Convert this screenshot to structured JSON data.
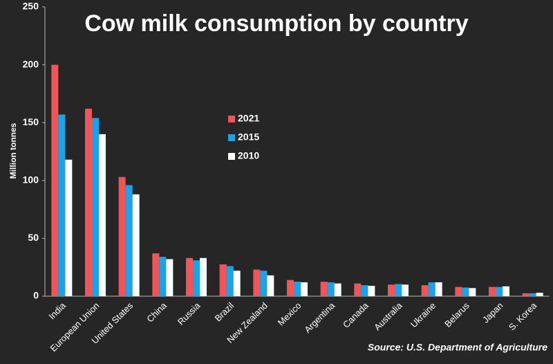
{
  "chart_data": {
    "type": "bar",
    "title": "Cow milk consumption by country",
    "y_label": "Million tonnes",
    "source": "Source: U.S. Department of Agriculture",
    "categories": [
      "India",
      "European Union",
      "United States",
      "China",
      "Russia",
      "Brazil",
      "New Zealand",
      "Mexico",
      "Argentina",
      "Canada",
      "Australia",
      "Ukraine",
      "Belarus",
      "Japan",
      "S. Korea"
    ],
    "series": [
      {
        "name": "2021",
        "color": "#f0555a",
        "values": [
          200,
          162,
          103,
          37,
          33,
          27.5,
          23,
          14,
          12.5,
          11,
          10,
          9.5,
          8,
          8,
          2.5
        ]
      },
      {
        "name": "2015",
        "color": "#1aa3e8",
        "values": [
          157,
          154,
          96,
          34,
          31,
          26,
          22,
          12.5,
          12,
          9.5,
          10.5,
          12,
          7.5,
          8,
          2.5
        ]
      },
      {
        "name": "2010",
        "color": "#ffffff",
        "values": [
          118,
          140,
          88,
          32,
          33,
          22,
          18,
          12,
          11,
          9,
          10,
          12,
          7,
          8.5,
          3
        ]
      }
    ],
    "ylim": [
      0,
      250
    ],
    "yticks": [
      0,
      50,
      100,
      150,
      200,
      250
    ]
  }
}
